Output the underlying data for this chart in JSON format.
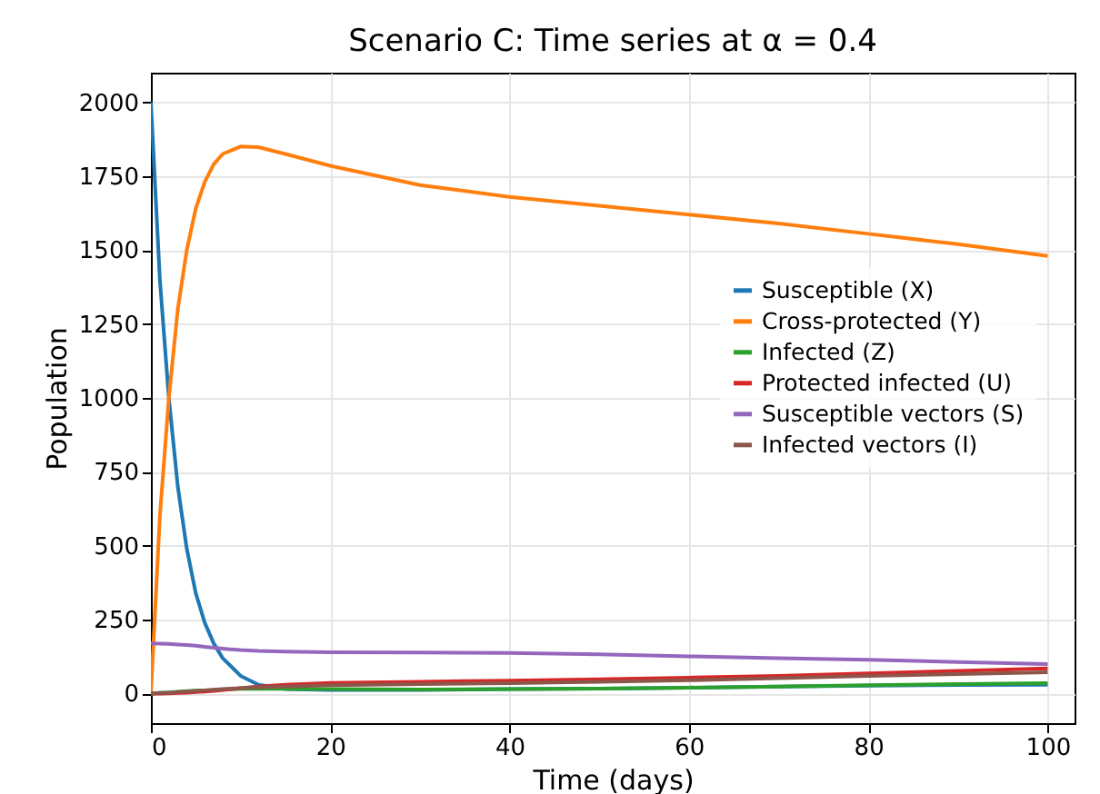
{
  "chart_data": {
    "type": "line",
    "title": "Scenario C: Time series at α = 0.4",
    "xlabel": "Time (days)",
    "ylabel": "Population",
    "x": [
      0,
      1,
      2,
      3,
      4,
      5,
      6,
      7,
      8,
      10,
      12,
      15,
      20,
      30,
      40,
      50,
      60,
      70,
      80,
      90,
      100
    ],
    "series": [
      {
        "name": "Susceptible (X)",
        "color": "#1f77b4",
        "values": [
          2000,
          1400,
          1000,
          700,
          490,
          340,
          240,
          170,
          120,
          60,
          30,
          15,
          12,
          12,
          15,
          17,
          20,
          24,
          27,
          29,
          30
        ]
      },
      {
        "name": "Cross-protected (Y)",
        "color": "#ff7f0e",
        "values": [
          0,
          600,
          1000,
          1300,
          1500,
          1640,
          1730,
          1790,
          1825,
          1850,
          1848,
          1825,
          1785,
          1720,
          1680,
          1650,
          1620,
          1590,
          1555,
          1520,
          1480
        ]
      },
      {
        "name": "Infected (Z)",
        "color": "#2ca02c",
        "values": [
          0,
          2,
          4,
          6,
          8,
          10,
          11,
          12,
          14,
          16,
          17,
          16,
          15,
          14,
          15,
          17,
          20,
          24,
          28,
          32,
          35
        ]
      },
      {
        "name": "Protected infected (U)",
        "color": "#d62728",
        "values": [
          0,
          0,
          1,
          2,
          3,
          5,
          7,
          9,
          12,
          18,
          24,
          30,
          36,
          40,
          44,
          48,
          54,
          60,
          68,
          77,
          85
        ]
      },
      {
        "name": "Susceptible vectors (S)",
        "color": "#9467bd",
        "values": [
          170,
          169,
          168,
          166,
          164,
          162,
          158,
          155,
          152,
          147,
          144,
          142,
          140,
          139,
          137,
          133,
          126,
          120,
          114,
          107,
          100
        ]
      },
      {
        "name": "Infected vectors (I)",
        "color": "#8c564b",
        "values": [
          0,
          2,
          3,
          5,
          7,
          9,
          11,
          13,
          15,
          18,
          21,
          24,
          28,
          32,
          35,
          40,
          45,
          52,
          60,
          66,
          72
        ]
      }
    ],
    "xlim": [
      0,
      103
    ],
    "xticks": [
      0,
      20,
      40,
      60,
      80,
      100
    ],
    "ylim": [
      -100,
      2100
    ],
    "yticks": [
      0,
      250,
      500,
      750,
      1000,
      1250,
      1500,
      1750,
      2000
    ],
    "grid": true,
    "legend": "right"
  }
}
